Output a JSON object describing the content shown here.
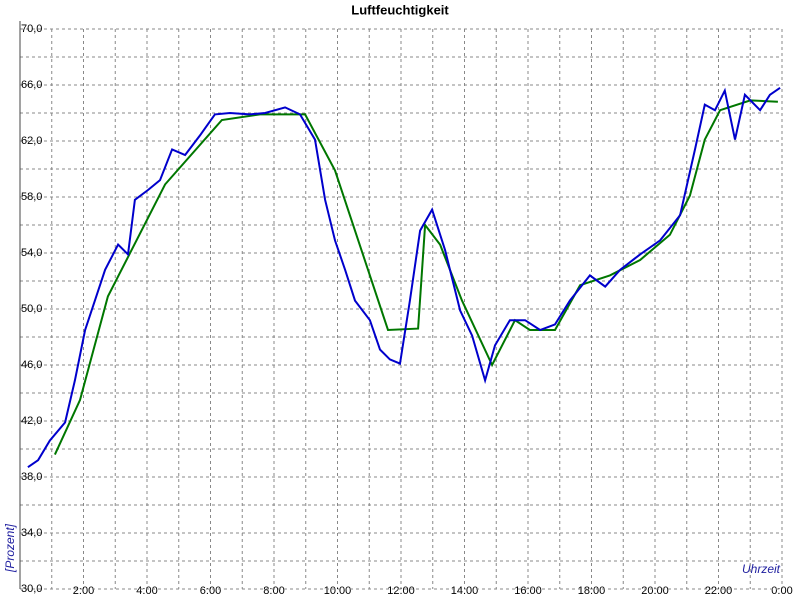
{
  "chart_data": {
    "type": "line",
    "title": "Luftfeuchtigkeit",
    "xlabel": "Uhrzeit",
    "ylabel": "[Prozent]",
    "xlim": [
      0,
      24
    ],
    "ylim": [
      30,
      70
    ],
    "xticks": [
      {
        "value": 2,
        "label": "2:00"
      },
      {
        "value": 4,
        "label": "4:00"
      },
      {
        "value": 6,
        "label": "6:00"
      },
      {
        "value": 8,
        "label": "8:00"
      },
      {
        "value": 10,
        "label": "10:00"
      },
      {
        "value": 12,
        "label": "12:00"
      },
      {
        "value": 14,
        "label": "14:00"
      },
      {
        "value": 16,
        "label": "16:00"
      },
      {
        "value": 18,
        "label": "18:00"
      },
      {
        "value": 20,
        "label": "20:00"
      },
      {
        "value": 22,
        "label": "22:00"
      },
      {
        "value": 24,
        "label": "0:00"
      }
    ],
    "yticks": [
      {
        "value": 30,
        "label": "30,0"
      },
      {
        "value": 34,
        "label": "34,0"
      },
      {
        "value": 38,
        "label": "38,0"
      },
      {
        "value": 42,
        "label": "42,0"
      },
      {
        "value": 46,
        "label": "46,0"
      },
      {
        "value": 50,
        "label": "50,0"
      },
      {
        "value": 54,
        "label": "54,0"
      },
      {
        "value": 58,
        "label": "58,0"
      },
      {
        "value": 62,
        "label": "62,0"
      },
      {
        "value": 66,
        "label": "66,0"
      },
      {
        "value": 70,
        "label": "70,0"
      }
    ],
    "xminor": [
      1,
      3,
      5,
      7,
      9,
      11,
      13,
      15,
      17,
      19,
      21,
      23
    ],
    "yminor": [
      32,
      36,
      40,
      44,
      48,
      52,
      56,
      60,
      64,
      68
    ],
    "grid": true,
    "series": [
      {
        "color": "#0000cc",
        "x": [
          0.25,
          0.57,
          0.94,
          1.42,
          1.73,
          2.05,
          2.36,
          2.68,
          3.09,
          3.4,
          3.62,
          4.03,
          4.41,
          4.79,
          5.2,
          5.67,
          6.14,
          6.61,
          7.24,
          7.72,
          8.35,
          8.82,
          9.29,
          9.61,
          9.92,
          10.24,
          10.55,
          11.02,
          11.34,
          11.65,
          11.97,
          12.28,
          12.6,
          12.98,
          13.39,
          13.86,
          14.24,
          14.65,
          14.96,
          15.43,
          15.91,
          16.38,
          16.85,
          17.32,
          17.95,
          18.43,
          18.9,
          19.53,
          20.16,
          20.79,
          21.26,
          21.57,
          21.89,
          22.2,
          22.52,
          22.83,
          23.31,
          23.62,
          23.94
        ],
        "values": [
          38.7,
          39.2,
          40.6,
          41.9,
          44.9,
          48.5,
          50.6,
          52.8,
          54.6,
          53.9,
          57.8,
          58.5,
          59.2,
          61.4,
          61.0,
          62.4,
          63.9,
          64.0,
          63.9,
          64.0,
          64.4,
          63.9,
          62.1,
          57.8,
          54.9,
          52.8,
          50.6,
          49.2,
          47.1,
          46.4,
          46.1,
          50.6,
          55.6,
          57.1,
          54.2,
          49.9,
          48.1,
          44.9,
          47.4,
          49.2,
          49.2,
          48.5,
          48.9,
          50.6,
          52.4,
          51.6,
          52.8,
          53.9,
          54.9,
          56.7,
          61.4,
          64.6,
          64.2,
          65.6,
          62.1,
          65.3,
          64.2,
          65.3,
          65.8
        ]
      },
      {
        "color": "#007700",
        "x": [
          1.1,
          1.89,
          2.77,
          4.57,
          6.36,
          7.56,
          8.98,
          9.92,
          11.59,
          12.54,
          12.76,
          13.23,
          13.92,
          14.87,
          15.59,
          16.06,
          16.85,
          17.64,
          18.58,
          19.53,
          20.47,
          21.1,
          21.57,
          22.05,
          23.0,
          23.87
        ],
        "values": [
          39.6,
          43.5,
          50.9,
          58.9,
          63.5,
          63.9,
          63.9,
          59.9,
          48.5,
          48.6,
          56.0,
          54.6,
          50.6,
          46.0,
          49.2,
          48.5,
          48.5,
          51.7,
          52.4,
          53.5,
          55.3,
          58.1,
          62.1,
          64.2,
          64.9,
          64.8
        ]
      }
    ]
  }
}
